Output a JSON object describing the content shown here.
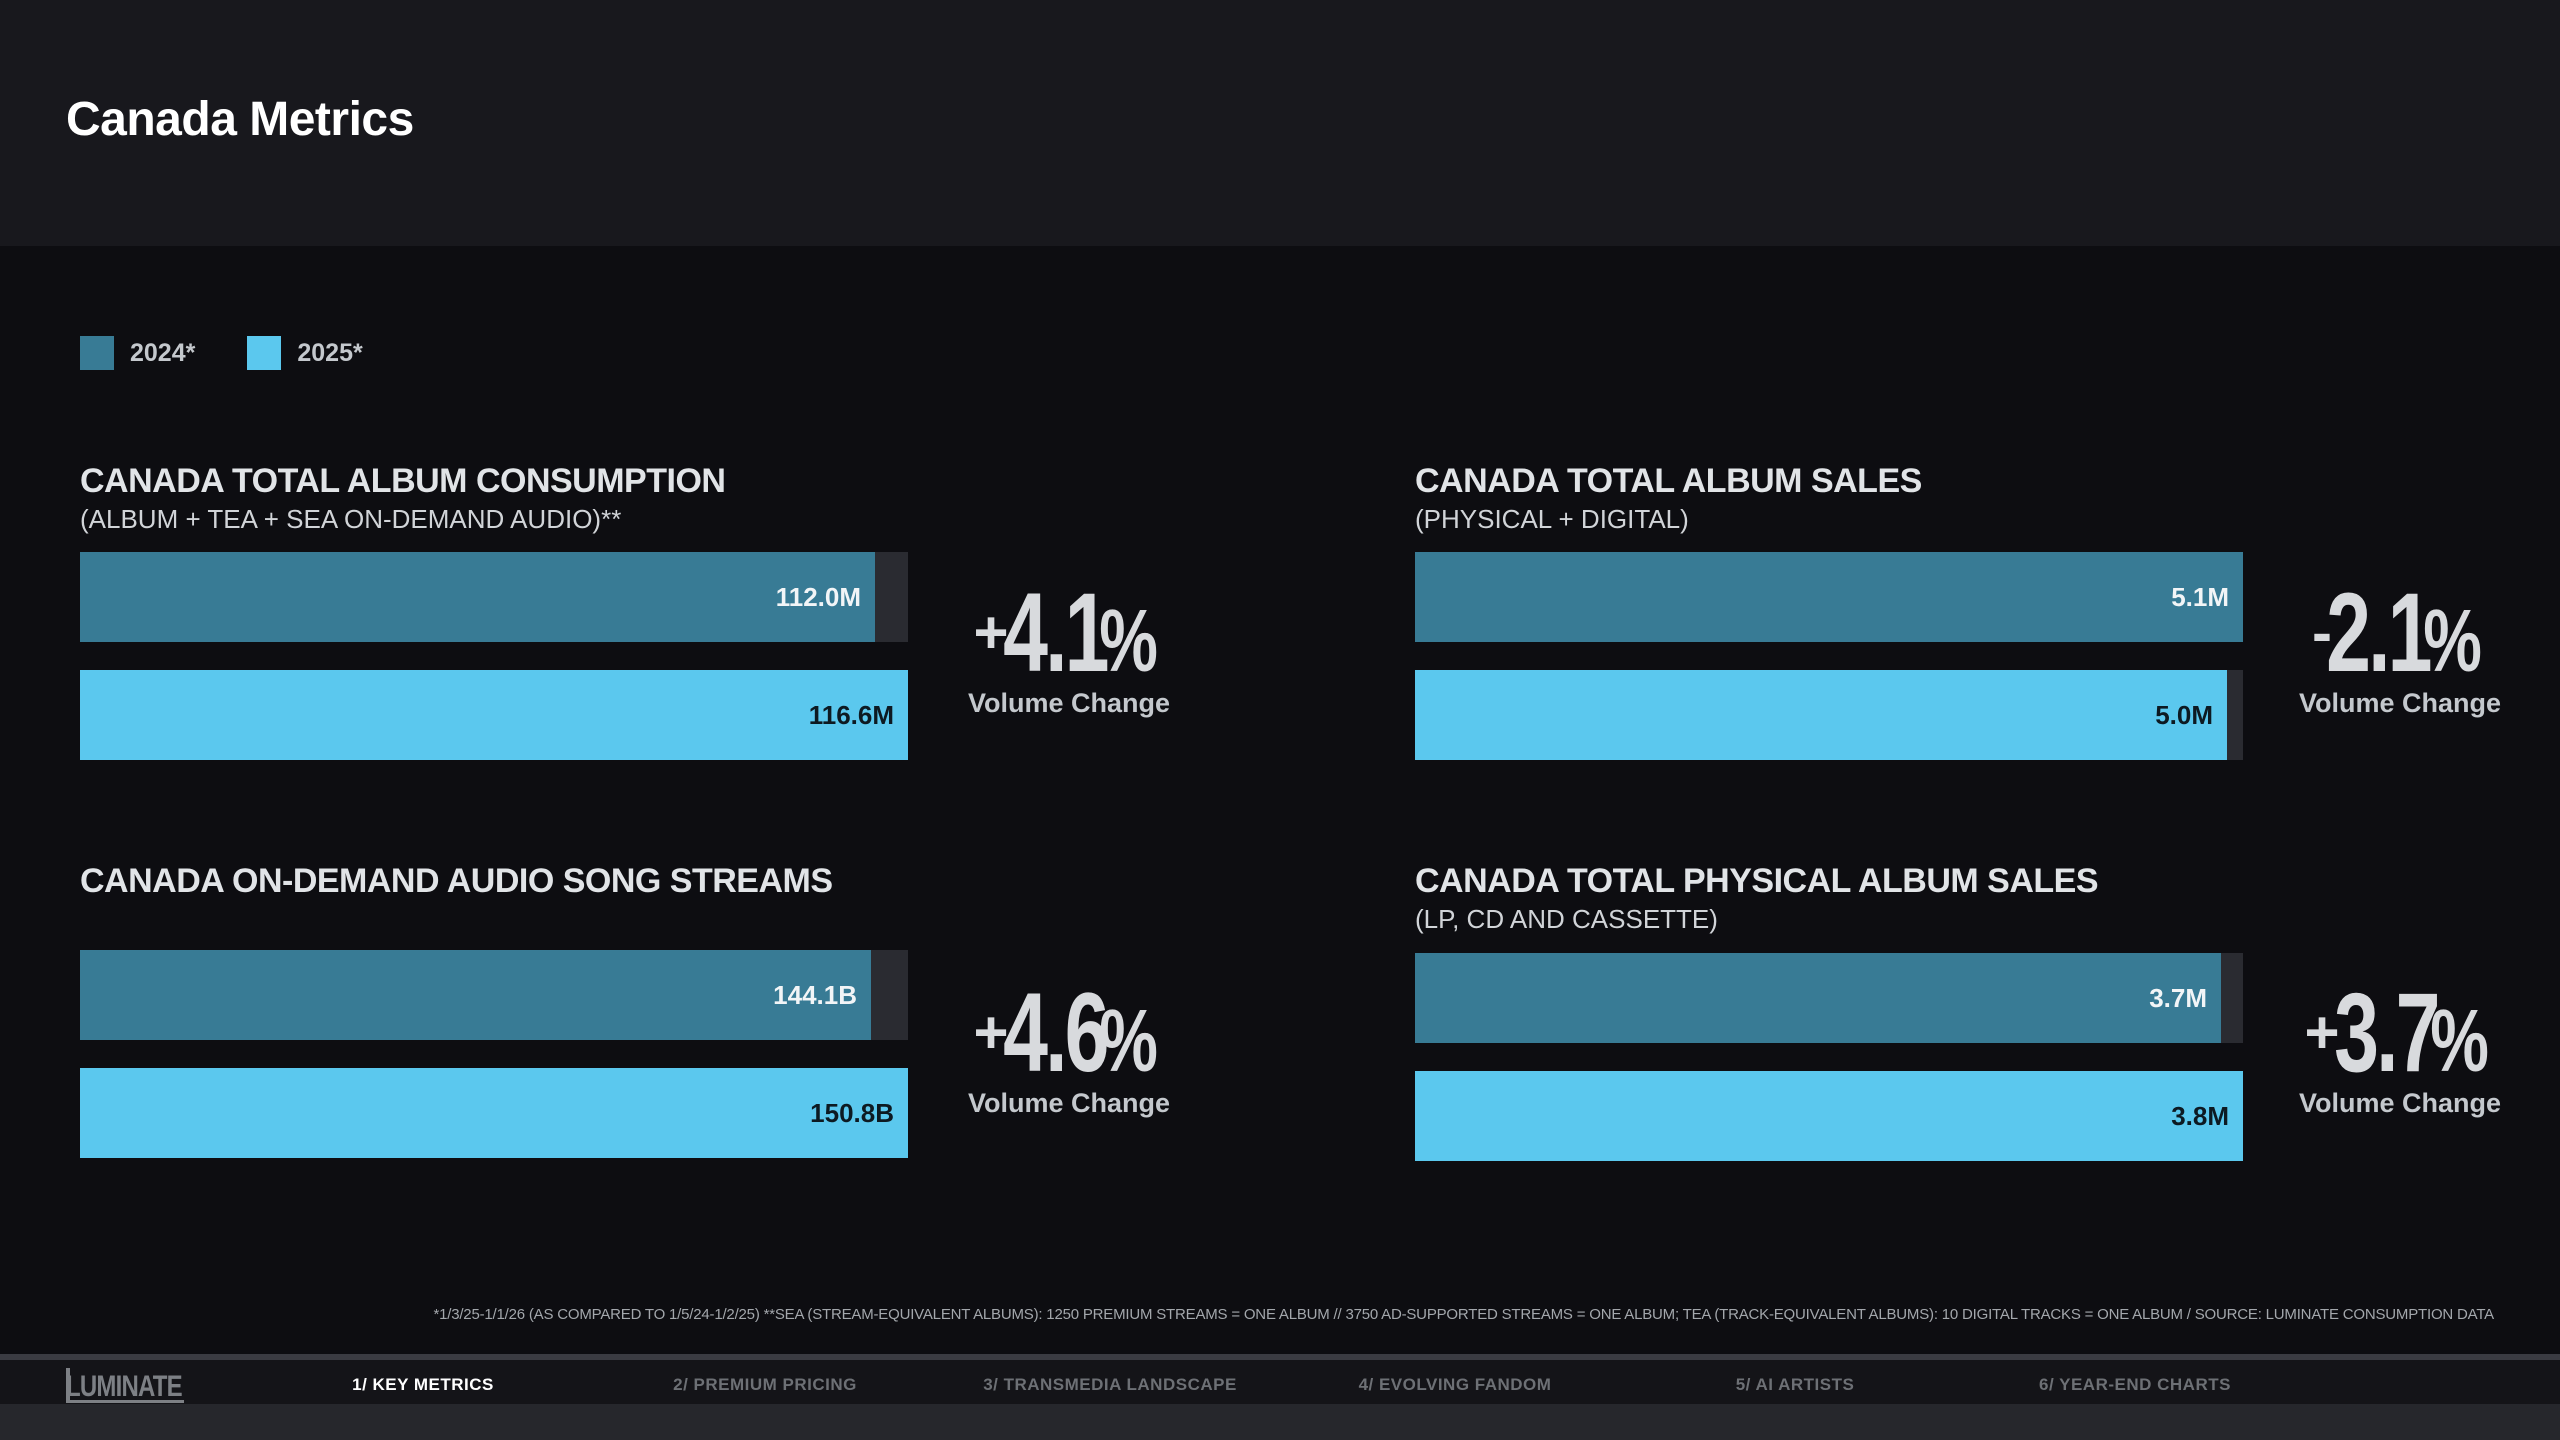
{
  "page": {
    "title": "Canada Metrics"
  },
  "legend": [
    {
      "label": "2024*",
      "color": "#387b95"
    },
    {
      "label": "2025*",
      "color": "#5bc8ee"
    }
  ],
  "chart_data": [
    {
      "type": "bar",
      "title": "CANADA TOTAL ALBUM CONSUMPTION",
      "subtitle": "(ALBUM + TEA + SEA ON-DEMAND AUDIO)**",
      "categories": [
        "2024*",
        "2025*"
      ],
      "values": [
        112.0,
        116.6
      ],
      "value_labels": [
        "112.0M",
        "116.6M"
      ],
      "unit": "M",
      "change": {
        "sign": "+",
        "value": "4.1",
        "suffix": "%",
        "label": "Volume Change"
      }
    },
    {
      "type": "bar",
      "title": "CANADA TOTAL ALBUM SALES",
      "subtitle": "(PHYSICAL + DIGITAL)",
      "categories": [
        "2024*",
        "2025*"
      ],
      "values": [
        5.1,
        5.0
      ],
      "value_labels": [
        "5.1M",
        "5.0M"
      ],
      "unit": "M",
      "change": {
        "sign": "-",
        "value": "2.1",
        "suffix": "%",
        "label": "Volume Change"
      }
    },
    {
      "type": "bar",
      "title": "CANADA ON-DEMAND AUDIO SONG STREAMS",
      "subtitle": "",
      "categories": [
        "2024*",
        "2025*"
      ],
      "values": [
        144.1,
        150.8
      ],
      "value_labels": [
        "144.1B",
        "150.8B"
      ],
      "unit": "B",
      "change": {
        "sign": "+",
        "value": "4.6",
        "suffix": "%",
        "label": "Volume Change"
      }
    },
    {
      "type": "bar",
      "title": "CANADA TOTAL PHYSICAL ALBUM SALES",
      "subtitle": "(LP, CD AND CASSETTE)",
      "categories": [
        "2024*",
        "2025*"
      ],
      "values": [
        3.7,
        3.8
      ],
      "value_labels": [
        "3.7M",
        "3.8M"
      ],
      "unit": "M",
      "change": {
        "sign": "+",
        "value": "3.7",
        "suffix": "%",
        "label": "Volume Change"
      }
    }
  ],
  "footnote": "*1/3/25-1/1/26 (AS COMPARED TO 1/5/24-1/2/25) **SEA (STREAM-EQUIVALENT ALBUMS): 1250 PREMIUM STREAMS = ONE ALBUM // 3750 AD-SUPPORTED STREAMS = ONE ALBUM; TEA (TRACK-EQUIVALENT ALBUMS): 10 DIGITAL TRACKS = ONE ALBUM / SOURCE: LUMINATE CONSUMPTION DATA",
  "nav": {
    "logo": "LUMINATE",
    "tabs": [
      {
        "label": "1/ KEY METRICS",
        "active": true
      },
      {
        "label": "2/ PREMIUM PRICING",
        "active": false
      },
      {
        "label": "3/ TRANSMEDIA LANDSCAPE",
        "active": false
      },
      {
        "label": "4/ EVOLVING FANDOM",
        "active": false
      },
      {
        "label": "5/ AI ARTISTS",
        "active": false
      },
      {
        "label": "6/ YEAR-END CHARTS",
        "active": false
      }
    ]
  }
}
